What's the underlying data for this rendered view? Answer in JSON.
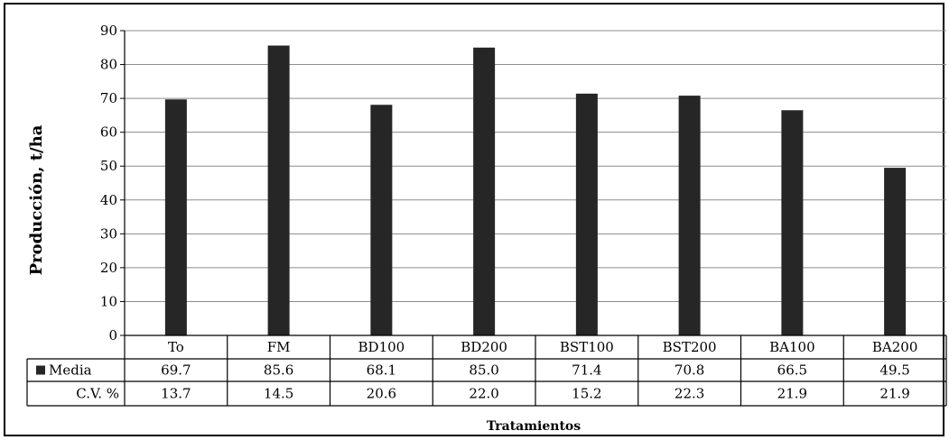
{
  "chart_data": {
    "type": "bar",
    "xlabel": "Tratamientos",
    "ylabel": "Producción, t/ha",
    "ylim": [
      0,
      90
    ],
    "yticks": [
      0,
      10,
      20,
      30,
      40,
      50,
      60,
      70,
      80,
      90
    ],
    "grid": true,
    "categories": [
      "To",
      "FM",
      "BD100",
      "BD200",
      "BST100",
      "BST200",
      "BA100",
      "BA200"
    ],
    "series": [
      {
        "name": "Media",
        "values": [
          69.7,
          85.6,
          68.1,
          85.0,
          71.4,
          70.8,
          66.5,
          49.5
        ],
        "color": "#262626"
      }
    ],
    "table_rows": [
      {
        "label": "Media",
        "values": [
          "69.7",
          "85.6",
          "68.1",
          "85.0",
          "71.4",
          "70.8",
          "66.5",
          "49.5"
        ]
      },
      {
        "label": "C.V. %",
        "values": [
          "13.7",
          "14.5",
          "20.6",
          "22.0",
          "15.2",
          "22.3",
          "21.9",
          "21.9"
        ]
      }
    ]
  }
}
